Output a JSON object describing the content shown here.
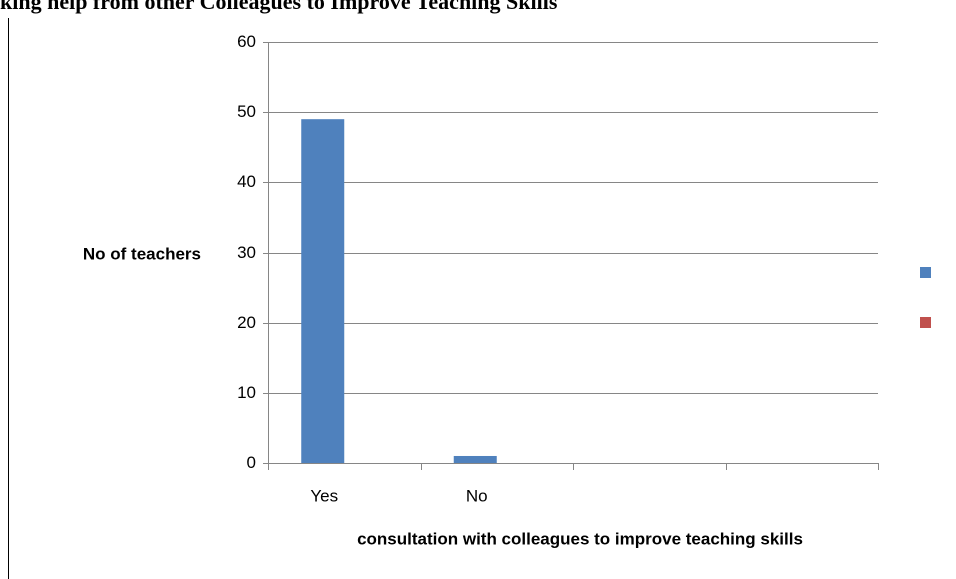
{
  "chart_data": {
    "type": "bar",
    "title": "king help from other Colleagues to Improve Teaching Skills",
    "x_label": "consultation with colleagues to improve teaching skills",
    "y_label": "No of teachers",
    "categories": [
      "Yes",
      "No",
      null,
      null
    ],
    "series": [
      {
        "color": "#4f81bd",
        "values": [
          49,
          1,
          null,
          null
        ]
      },
      {
        "color": "#c0504d",
        "values": [
          null,
          null,
          null,
          null
        ]
      }
    ],
    "ylim": [
      0,
      60
    ],
    "yticks": [
      0,
      10,
      20,
      30,
      40,
      50,
      60
    ],
    "grid": true
  }
}
